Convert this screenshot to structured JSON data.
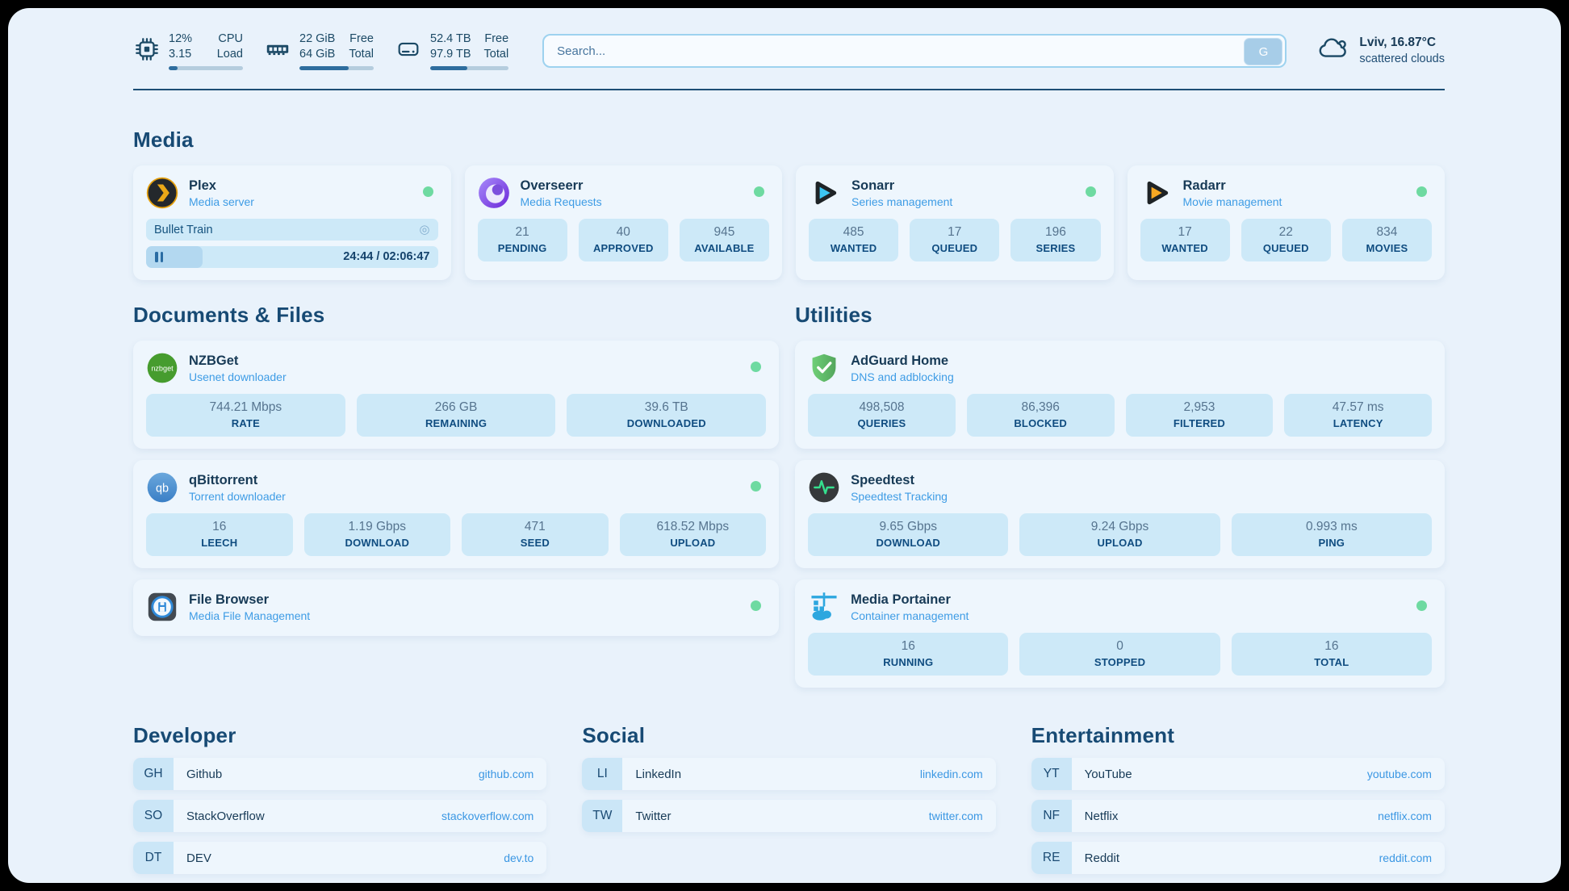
{
  "theme": {
    "page_bg": "#e9f2fb",
    "card_bg": "#eef6fd",
    "stat_box_bg": "#cde9f8",
    "accent_blue": "#3e9ce5",
    "dark_navy": "#173a56",
    "label_navy": "#0f4c80",
    "status_green": "#6edaa1",
    "progress_fill": "#2e6d9e",
    "divider": "#1d4e75"
  },
  "header": {
    "resources": [
      {
        "icon": "cpu-icon",
        "value_top": "12%",
        "value_bottom": "3.15",
        "label_top": "CPU",
        "label_bottom": "Load",
        "progress_pct": 12
      },
      {
        "icon": "ram-icon",
        "value_top": "22 GiB",
        "value_bottom": "64 GiB",
        "label_top": "Free",
        "label_bottom": "Total",
        "progress_pct": 66
      },
      {
        "icon": "disk-icon",
        "value_top": "52.4 TB",
        "value_bottom": "97.9 TB",
        "label_top": "Free",
        "label_bottom": "Total",
        "progress_pct": 47
      }
    ],
    "search": {
      "placeholder": "Search...",
      "button_label": "G"
    },
    "weather": {
      "icon": "cloud-icon",
      "location_temp": "Lviv, 16.87°C",
      "condition": "scattered clouds"
    }
  },
  "sections": {
    "media": {
      "title": "Media",
      "apps": [
        {
          "name": "Plex",
          "subtitle": "Media server",
          "icon": "plex-icon",
          "status_dot": true,
          "now_playing": {
            "title": "Bullet Train",
            "session_icon": "session-icon",
            "time": "24:44 / 02:06:47",
            "progress_pct": 19.5
          }
        },
        {
          "name": "Overseerr",
          "subtitle": "Media Requests",
          "icon": "overseerr-icon",
          "status_dot": true,
          "stats": [
            {
              "value": "21",
              "label": "PENDING"
            },
            {
              "value": "40",
              "label": "APPROVED"
            },
            {
              "value": "945",
              "label": "AVAILABLE"
            }
          ]
        },
        {
          "name": "Sonarr",
          "subtitle": "Series management",
          "icon": "sonarr-icon",
          "status_dot": true,
          "stats": [
            {
              "value": "485",
              "label": "WANTED"
            },
            {
              "value": "17",
              "label": "QUEUED"
            },
            {
              "value": "196",
              "label": "SERIES"
            }
          ]
        },
        {
          "name": "Radarr",
          "subtitle": "Movie management",
          "icon": "radarr-icon",
          "status_dot": true,
          "stats": [
            {
              "value": "17",
              "label": "WANTED"
            },
            {
              "value": "22",
              "label": "QUEUED"
            },
            {
              "value": "834",
              "label": "MOVIES"
            }
          ]
        }
      ]
    },
    "documents": {
      "title": "Documents & Files",
      "apps": [
        {
          "name": "NZBGet",
          "subtitle": "Usenet downloader",
          "icon": "nzbget-icon",
          "status_dot": true,
          "stats": [
            {
              "value": "744.21 Mbps",
              "label": "RATE"
            },
            {
              "value": "266 GB",
              "label": "REMAINING"
            },
            {
              "value": "39.6 TB",
              "label": "DOWNLOADED"
            }
          ]
        },
        {
          "name": "qBittorrent",
          "subtitle": "Torrent downloader",
          "icon": "qbittorrent-icon",
          "status_dot": true,
          "stats": [
            {
              "value": "16",
              "label": "LEECH"
            },
            {
              "value": "1.19 Gbps",
              "label": "DOWNLOAD"
            },
            {
              "value": "471",
              "label": "SEED"
            },
            {
              "value": "618.52 Mbps",
              "label": "UPLOAD"
            }
          ]
        },
        {
          "name": "File Browser",
          "subtitle": "Media File Management",
          "icon": "filebrowser-icon",
          "status_dot": true
        }
      ]
    },
    "utilities": {
      "title": "Utilities",
      "apps": [
        {
          "name": "AdGuard Home",
          "subtitle": "DNS and adblocking",
          "icon": "adguard-icon",
          "status_dot": false,
          "stats": [
            {
              "value": "498,508",
              "label": "QUERIES"
            },
            {
              "value": "86,396",
              "label": "BLOCKED"
            },
            {
              "value": "2,953",
              "label": "FILTERED"
            },
            {
              "value": "47.57 ms",
              "label": "LATENCY"
            }
          ]
        },
        {
          "name": "Speedtest",
          "subtitle": "Speedtest Tracking",
          "icon": "speedtest-icon",
          "status_dot": false,
          "stats": [
            {
              "value": "9.65 Gbps",
              "label": "DOWNLOAD"
            },
            {
              "value": "9.24 Gbps",
              "label": "UPLOAD"
            },
            {
              "value": "0.993 ms",
              "label": "PING"
            }
          ]
        },
        {
          "name": "Media Portainer",
          "subtitle": "Container management",
          "icon": "portainer-icon",
          "status_dot": true,
          "stats": [
            {
              "value": "16",
              "label": "RUNNING"
            },
            {
              "value": "0",
              "label": "STOPPED"
            },
            {
              "value": "16",
              "label": "TOTAL"
            }
          ]
        }
      ]
    },
    "link_groups": [
      {
        "title": "Developer",
        "links": [
          {
            "tag": "GH",
            "name": "Github",
            "url": "github.com"
          },
          {
            "tag": "SO",
            "name": "StackOverflow",
            "url": "stackoverflow.com"
          },
          {
            "tag": "DT",
            "name": "DEV",
            "url": "dev.to"
          }
        ]
      },
      {
        "title": "Social",
        "links": [
          {
            "tag": "LI",
            "name": "LinkedIn",
            "url": "linkedin.com"
          },
          {
            "tag": "TW",
            "name": "Twitter",
            "url": "twitter.com"
          }
        ]
      },
      {
        "title": "Entertainment",
        "links": [
          {
            "tag": "YT",
            "name": "YouTube",
            "url": "youtube.com"
          },
          {
            "tag": "NF",
            "name": "Netflix",
            "url": "netflix.com"
          },
          {
            "tag": "RE",
            "name": "Reddit",
            "url": "reddit.com"
          }
        ]
      }
    ]
  }
}
